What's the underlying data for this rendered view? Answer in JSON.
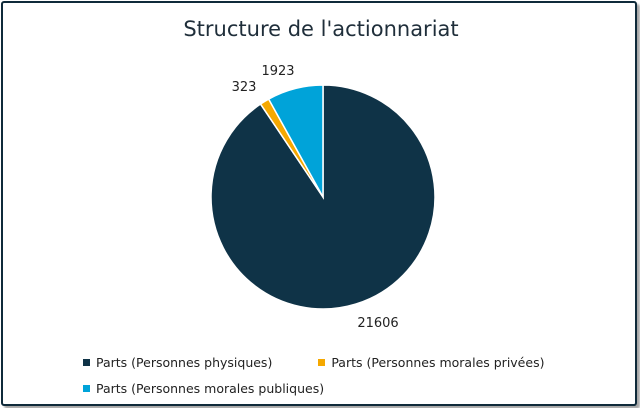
{
  "chart_data": {
    "type": "pie",
    "title": "Structure de l'actionnariat",
    "categories": [
      "Parts (Personnes physiques)",
      "Parts (Personnes morales privées)",
      "Parts (Personnes morales publiques)"
    ],
    "values": [
      21606,
      323,
      1923
    ],
    "colors": [
      "#0f3347",
      "#f5a800",
      "#00a3d9"
    ],
    "data_labels": [
      "21606",
      "323",
      "1923"
    ],
    "legend_position": "bottom",
    "start_angle_deg": 0,
    "direction": "clockwise"
  }
}
